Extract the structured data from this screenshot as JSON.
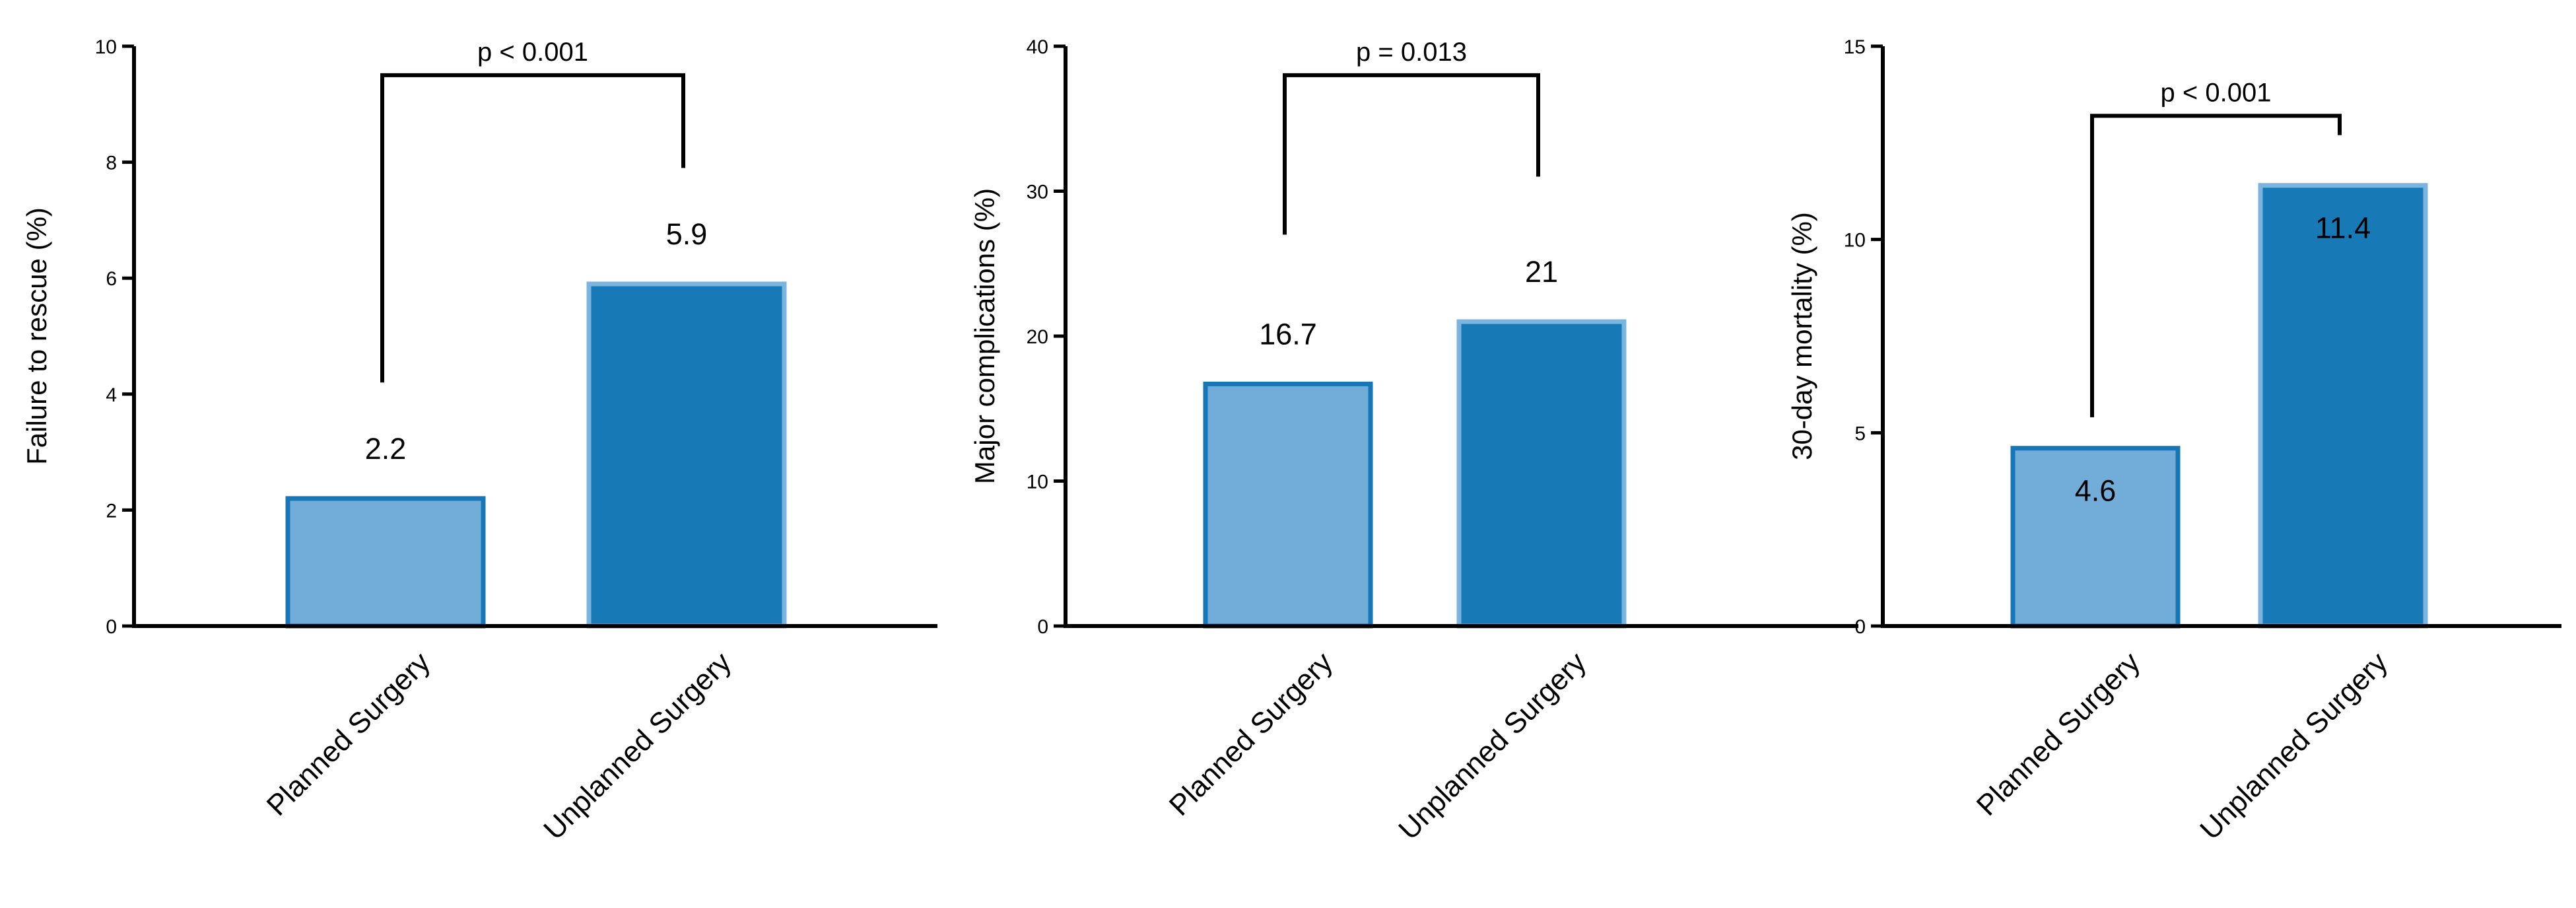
{
  "colors": {
    "planned_fill": "#72ADDA",
    "planned_stroke": "#1777B6",
    "unplanned_fill": "#1779B5",
    "unplanned_stroke": "#7AB4DF"
  },
  "chart_data": [
    {
      "type": "bar",
      "categories": [
        "Planned Surgery",
        "Unplanned Surgery"
      ],
      "values": [
        2.2,
        5.9
      ],
      "data_labels": [
        "2.2",
        "5.9"
      ],
      "data_label_position": "above",
      "ylabel": "Failure to rescue (%)",
      "ylim": [
        0,
        10
      ],
      "yticks": [
        "0",
        "2",
        "4",
        "6",
        "8",
        "10"
      ],
      "significance": {
        "label": "p < 0.001",
        "level": 9.5,
        "left_end": 4.2,
        "right_end": 7.9
      },
      "grid": false,
      "legend": "none"
    },
    {
      "type": "bar",
      "categories": [
        "Planned Surgery",
        "Unplanned Surgery"
      ],
      "values": [
        16.7,
        21
      ],
      "data_labels": [
        "16.7",
        "21"
      ],
      "data_label_position": "above",
      "ylabel": "Major complications (%)",
      "ylim": [
        0,
        40
      ],
      "yticks": [
        "0",
        "10",
        "20",
        "30",
        "40"
      ],
      "significance": {
        "label": "p = 0.013",
        "level": 38,
        "left_end": 27,
        "right_end": 31
      },
      "grid": false,
      "legend": "none"
    },
    {
      "type": "bar",
      "categories": [
        "Planned Surgery",
        "Unplanned Surgery"
      ],
      "values": [
        4.6,
        11.4
      ],
      "data_labels": [
        "4.6",
        "11.4"
      ],
      "data_label_position": "inside",
      "ylabel": "30-day mortality (%)",
      "ylim": [
        0,
        15
      ],
      "yticks": [
        "0",
        "5",
        "10",
        "15"
      ],
      "significance": {
        "label": "p < 0.001",
        "level": 13.2,
        "left_end": 5.4,
        "right_end": 12.7
      },
      "grid": false,
      "legend": "none"
    }
  ]
}
